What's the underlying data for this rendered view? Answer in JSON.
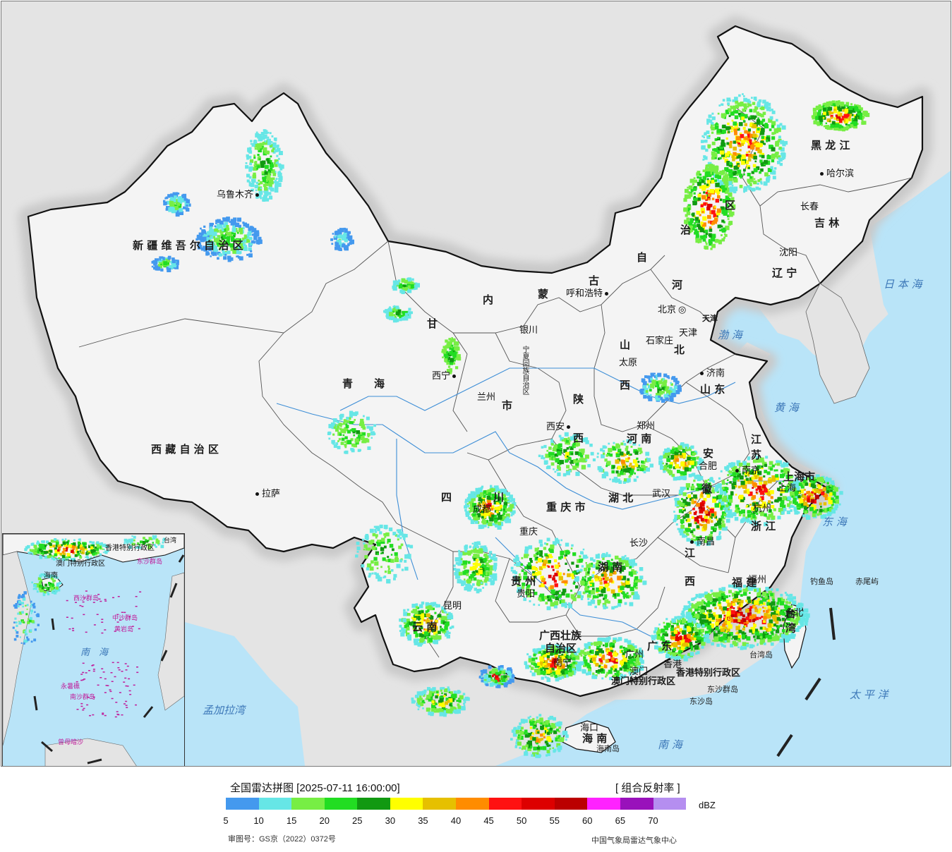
{
  "map": {
    "province_labels": [
      {
        "id": "xinjiang",
        "text": "新 疆 维 吾 尔 自 治 区"
      },
      {
        "id": "xizang",
        "text": "西 藏 自 治 区"
      },
      {
        "id": "qinghai",
        "text": "青　　海"
      },
      {
        "id": "gansu",
        "text": "甘"
      },
      {
        "id": "neimenggu_1",
        "text": "内"
      },
      {
        "id": "neimenggu_2",
        "text": "蒙"
      },
      {
        "id": "neimenggu_3",
        "text": "古"
      },
      {
        "id": "neimenggu_4",
        "text": "自"
      },
      {
        "id": "neimenggu_5",
        "text": "治"
      },
      {
        "id": "neimenggu_6",
        "text": "区"
      },
      {
        "id": "heilongjiang",
        "text": "黑 龙 江"
      },
      {
        "id": "jilin",
        "text": "吉 林"
      },
      {
        "id": "liaoning",
        "text": "辽 宁"
      },
      {
        "id": "hebei_1",
        "text": "河"
      },
      {
        "id": "hebei_2",
        "text": "北"
      },
      {
        "id": "shanxi_1",
        "text": "山"
      },
      {
        "id": "shanxi_2",
        "text": "西"
      },
      {
        "id": "shandong",
        "text": "山 东"
      },
      {
        "id": "henan",
        "text": "河 南"
      },
      {
        "id": "shaanxi_1",
        "text": "陕"
      },
      {
        "id": "shaanxi_2",
        "text": "西"
      },
      {
        "id": "sichuan_1",
        "text": "四"
      },
      {
        "id": "sichuan_2",
        "text": "川"
      },
      {
        "id": "chongqing",
        "text": "重 庆 市"
      },
      {
        "id": "hubei",
        "text": "湖 北"
      },
      {
        "id": "hunan",
        "text": "湖 南"
      },
      {
        "id": "guizhou",
        "text": "贵 州"
      },
      {
        "id": "yunnan",
        "text": "云 南"
      },
      {
        "id": "guangxi_1",
        "text": "广西壮族"
      },
      {
        "id": "guangxi_2",
        "text": "自治区"
      },
      {
        "id": "guangdong",
        "text": "广 东"
      },
      {
        "id": "jiangxi_1",
        "text": "江"
      },
      {
        "id": "jiangxi_2",
        "text": "西"
      },
      {
        "id": "fujian",
        "text": "福 建"
      },
      {
        "id": "zhejiang",
        "text": "浙 江"
      },
      {
        "id": "anhui_1",
        "text": "安"
      },
      {
        "id": "anhui_2",
        "text": "徽"
      },
      {
        "id": "jiangsu_1",
        "text": "江"
      },
      {
        "id": "jiangsu_2",
        "text": "苏"
      },
      {
        "id": "shanghai",
        "text": "上海市"
      },
      {
        "id": "ningxia",
        "text": "宁夏回族自治区"
      },
      {
        "id": "gansu_shi",
        "text": "市"
      },
      {
        "id": "hainan",
        "text": "海 南"
      },
      {
        "id": "taiwan",
        "text": "台 湾"
      },
      {
        "id": "hk",
        "text": "香港特别行政区"
      },
      {
        "id": "macao",
        "text": "澳门特别行政区"
      },
      {
        "id": "tianjin_big",
        "text": "天津"
      }
    ],
    "cities": [
      {
        "id": "urumqi",
        "text": "乌鲁木齐"
      },
      {
        "id": "lhasa",
        "text": "拉萨"
      },
      {
        "id": "xining",
        "text": "西宁"
      },
      {
        "id": "lanzhou",
        "text": "兰州"
      },
      {
        "id": "yinchuan",
        "text": "银川"
      },
      {
        "id": "hohhot",
        "text": "呼和浩特"
      },
      {
        "id": "beijing",
        "text": "北京"
      },
      {
        "id": "tianjin",
        "text": "天津"
      },
      {
        "id": "shijiazhuang",
        "text": "石家庄"
      },
      {
        "id": "taiyuan",
        "text": "太原"
      },
      {
        "id": "jinan",
        "text": "济南"
      },
      {
        "id": "zhengzhou",
        "text": "郑州"
      },
      {
        "id": "xian",
        "text": "西安"
      },
      {
        "id": "chengdu",
        "text": "成都"
      },
      {
        "id": "chongqing_c",
        "text": "重庆"
      },
      {
        "id": "wuhan",
        "text": "武汉"
      },
      {
        "id": "changsha",
        "text": "长沙"
      },
      {
        "id": "nanchang",
        "text": "南昌"
      },
      {
        "id": "hefei",
        "text": "合肥"
      },
      {
        "id": "nanjing",
        "text": "南京"
      },
      {
        "id": "hangzhou",
        "text": "杭州"
      },
      {
        "id": "shanghai_c",
        "text": "上海"
      },
      {
        "id": "fuzhou",
        "text": "福州"
      },
      {
        "id": "taibei",
        "text": "台北"
      },
      {
        "id": "guiyang",
        "text": "贵阳"
      },
      {
        "id": "kunming",
        "text": "昆明"
      },
      {
        "id": "nanning",
        "text": "南宁"
      },
      {
        "id": "guangzhou",
        "text": "广州"
      },
      {
        "id": "xianggang",
        "text": "香港"
      },
      {
        "id": "aomen",
        "text": "澳门"
      },
      {
        "id": "haikou",
        "text": "海口"
      },
      {
        "id": "harbin",
        "text": "哈尔滨"
      },
      {
        "id": "changchun",
        "text": "长春"
      },
      {
        "id": "shenyang",
        "text": "沈阳"
      }
    ],
    "seas": [
      {
        "id": "bohai",
        "text": "渤 海"
      },
      {
        "id": "huanghai",
        "text": "黄 海"
      },
      {
        "id": "donghai",
        "text": "东 海"
      },
      {
        "id": "nanhai",
        "text": "南 海"
      },
      {
        "id": "taipingyang",
        "text": "太 平 洋"
      },
      {
        "id": "ribenhai",
        "text": "日 本 海"
      },
      {
        "id": "mengjialawan",
        "text": "孟加拉湾"
      }
    ],
    "islands": [
      {
        "id": "diaoyudao",
        "text": "钓鱼岛"
      },
      {
        "id": "chiweiyu",
        "text": "赤尾屿"
      },
      {
        "id": "taiwandao",
        "text": "台湾岛"
      },
      {
        "id": "dongshaqundao",
        "text": "东沙群岛"
      },
      {
        "id": "dongshadao",
        "text": "东沙岛"
      },
      {
        "id": "hainandao",
        "text": "海南岛"
      }
    ],
    "inset": {
      "labels": [
        {
          "id": "i_nanhai",
          "text": "南　海"
        },
        {
          "id": "i_hk",
          "text": "香港特别行政区"
        },
        {
          "id": "i_macao",
          "text": "澳门特别行政区"
        },
        {
          "id": "i_taiwan",
          "text": "台湾"
        },
        {
          "id": "i_dongsha",
          "text": "东沙群岛"
        },
        {
          "id": "i_xisha",
          "text": "西沙群岛"
        },
        {
          "id": "i_zhongsha",
          "text": "中沙群岛"
        },
        {
          "id": "i_huangyan",
          "text": "黄岩岛"
        },
        {
          "id": "i_nansha",
          "text": "南沙群岛"
        },
        {
          "id": "i_yongshu",
          "text": "永暑礁"
        },
        {
          "id": "i_zengmu",
          "text": "曾母暗沙"
        },
        {
          "id": "i_hainan",
          "text": "海南"
        }
      ]
    }
  },
  "legend": {
    "title": "全国雷达拼图 [2025-07-11 16:00:00]",
    "product": "[ 组合反射率 ]",
    "unit": "dBZ",
    "colors": [
      "#4499ee",
      "#66e6e6",
      "#77ee44",
      "#22dd22",
      "#119911",
      "#ffff00",
      "#e6c000",
      "#ff8c00",
      "#ff1111",
      "#dd0000",
      "#bb0000",
      "#ff22ff",
      "#9911bb",
      "#b58ef0"
    ],
    "ticks": [
      "5",
      "10",
      "15",
      "20",
      "25",
      "30",
      "35",
      "40",
      "45",
      "50",
      "55",
      "60",
      "65",
      "70"
    ],
    "review_number": "审图号：GS京（2022）0372号",
    "source": "中国气象局雷达气象中心"
  }
}
